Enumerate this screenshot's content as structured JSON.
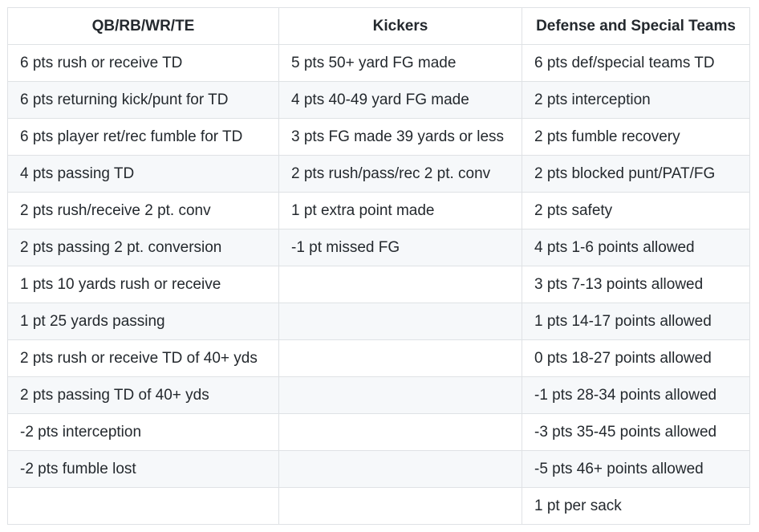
{
  "table": {
    "headers": [
      "QB/RB/WR/TE",
      "Kickers",
      "Defense and Special Teams"
    ],
    "rows": [
      [
        "6 pts rush or receive TD",
        "5 pts 50+ yard FG made",
        "6 pts def/special teams TD"
      ],
      [
        "6 pts returning kick/punt for TD",
        "4 pts 40-49 yard FG made",
        "2 pts interception"
      ],
      [
        "6 pts player ret/rec fumble for TD",
        "3 pts FG made 39 yards or less",
        "2 pts fumble recovery"
      ],
      [
        "4 pts passing TD",
        "2 pts rush/pass/rec 2 pt. conv",
        "2 pts blocked punt/PAT/FG"
      ],
      [
        "2 pts rush/receive 2 pt. conv",
        "1 pt extra point made",
        "2 pts safety"
      ],
      [
        "2 pts passing 2 pt. conversion",
        "-1 pt missed FG",
        "4 pts 1-6 points allowed"
      ],
      [
        "1 pts 10 yards rush or receive",
        "",
        "3 pts 7-13 points allowed"
      ],
      [
        "1 pt 25 yards passing",
        "",
        "1 pts 14-17 points allowed"
      ],
      [
        "2 pts rush or receive TD of 40+ yds",
        "",
        "0 pts 18-27 points allowed"
      ],
      [
        "2 pts passing TD of 40+ yds",
        "",
        "-1 pts 28-34 points allowed"
      ],
      [
        "-2 pts interception",
        "",
        "-3 pts 35-45 points allowed"
      ],
      [
        "-2 pts fumble lost",
        "",
        "-5 pts 46+ points allowed"
      ],
      [
        "",
        "",
        "1 pt per sack"
      ]
    ]
  }
}
